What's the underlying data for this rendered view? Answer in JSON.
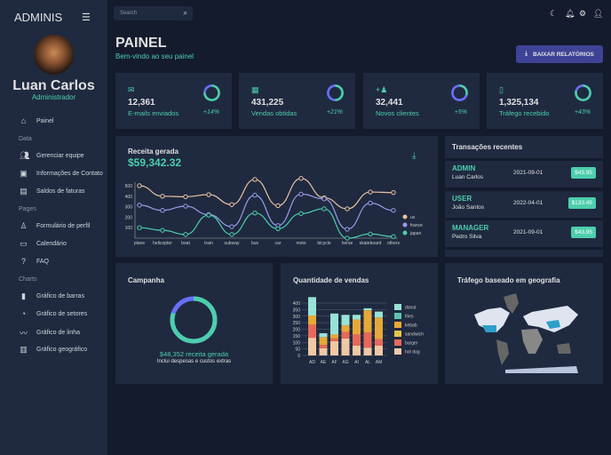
{
  "sidebar": {
    "brand": "ADMINIS",
    "user_name": "Luan Carlos",
    "user_role": "Administrador",
    "items": [
      {
        "label": "Painel",
        "icon": "home-icon"
      }
    ],
    "sections": [
      {
        "title": "Data",
        "items": [
          {
            "label": "Gerenciar equipe",
            "icon": "people-icon"
          },
          {
            "label": "Informações de Contato",
            "icon": "contacts-icon"
          },
          {
            "label": "Saldos de faturas",
            "icon": "receipt-icon"
          }
        ]
      },
      {
        "title": "Pages",
        "items": [
          {
            "label": "Formulário de perfil",
            "icon": "person-icon"
          },
          {
            "label": "Calendário",
            "icon": "calendar-icon"
          },
          {
            "label": "FAQ",
            "icon": "help-icon"
          }
        ]
      },
      {
        "title": "Charts",
        "items": [
          {
            "label": "Gráfico de barras",
            "icon": "bar-chart-icon"
          },
          {
            "label": "Gráfico de setores",
            "icon": "pie-chart-icon"
          },
          {
            "label": "Gráfico de linha",
            "icon": "line-chart-icon"
          },
          {
            "label": "Gráfico geográfico",
            "icon": "map-icon"
          }
        ]
      }
    ]
  },
  "topbar": {
    "search_placeholder": "Search"
  },
  "header": {
    "title": "PAINEL",
    "subtitle": "Bem-vindo ao seu painel",
    "download_button": "BAIXAR RELATÓRIOS"
  },
  "stats": [
    {
      "value": "12,361",
      "label": "E-mails enviados",
      "change": "+14%",
      "progress": 0.75,
      "icon": "email-icon"
    },
    {
      "value": "431,225",
      "label": "Vendas obtidas",
      "change": "+21%",
      "progress": 0.5,
      "icon": "point-of-sale-icon"
    },
    {
      "value": "32,441",
      "label": "Novos clientes",
      "change": "+5%",
      "progress": 0.3,
      "icon": "person-add-icon"
    },
    {
      "value": "1,325,134",
      "label": "Tráfego recebido",
      "change": "+43%",
      "progress": 0.8,
      "icon": "traffic-icon"
    }
  ],
  "revenue": {
    "title": "Receita gerada",
    "amount": "$59,342.32"
  },
  "transactions": {
    "title": "Transações recentes",
    "rows": [
      {
        "role": "ADMIN",
        "user": "Luan Carlos",
        "date": "2021-09-01",
        "amount": "$43.95"
      },
      {
        "role": "USER",
        "user": "João Santos",
        "date": "2022-04-01",
        "amount": "$133.45"
      },
      {
        "role": "MANAGER",
        "user": "Pedro Silva",
        "date": "2021-09-01",
        "amount": "$43.95"
      }
    ]
  },
  "campaign": {
    "title": "Campanha",
    "amount_text": "$48,352 receita gerada",
    "note": "Inclui despesas e custos extras",
    "progress": 0.8
  },
  "sales": {
    "title": "Quantidade de vendas"
  },
  "geo": {
    "title": "Tráfego baseado em geografia"
  },
  "colors": {
    "accent": "#4cceac",
    "primary": "#6870fa",
    "button": "#3e4396"
  },
  "chart_data": [
    {
      "type": "line",
      "categories": [
        "plane",
        "helicopter",
        "boat",
        "train",
        "subway",
        "bus",
        "car",
        "moto",
        "bicycle",
        "horse",
        "skateboard",
        "others"
      ],
      "yticks": [
        100,
        200,
        300,
        400,
        500
      ],
      "legend": "right",
      "series": [
        {
          "name": "us",
          "color": "#e8c1a0",
          "values": [
            500,
            400,
            395,
            415,
            320,
            560,
            310,
            570,
            385,
            280,
            440,
            435
          ]
        },
        {
          "name": "france",
          "color": "#9b9be8",
          "values": [
            315,
            265,
            305,
            225,
            110,
            410,
            120,
            420,
            375,
            85,
            335,
            265
          ]
        },
        {
          "name": "japan",
          "color": "#4cceac",
          "values": [
            100,
            75,
            35,
            220,
            35,
            240,
            90,
            235,
            280,
            0,
            40,
            15
          ]
        }
      ]
    },
    {
      "type": "bar",
      "stacked": true,
      "categories": [
        "AD",
        "AE",
        "AF",
        "AG",
        "AI",
        "AL",
        "AM"
      ],
      "yticks": [
        0,
        50,
        100,
        150,
        200,
        250,
        300,
        350,
        400
      ],
      "legend": "right",
      "series": [
        {
          "name": "hot dog",
          "color": "#f1c8a4",
          "values": [
            135,
            55,
            110,
            130,
            75,
            60,
            75
          ]
        },
        {
          "name": "burger",
          "color": "#e8695a",
          "values": [
            100,
            25,
            20,
            50,
            85,
            115,
            50
          ]
        },
        {
          "name": "sandwich",
          "color": "#e6c54d",
          "values": [
            0,
            0,
            0,
            0,
            0,
            0,
            0
          ]
        },
        {
          "name": "kebab",
          "color": "#e8a838",
          "values": [
            70,
            60,
            30,
            50,
            115,
            170,
            165
          ]
        },
        {
          "name": "fries",
          "color": "#5fc4b0",
          "values": [
            0,
            0,
            0,
            0,
            0,
            0,
            0
          ]
        },
        {
          "name": "donut",
          "color": "#97e3d5",
          "values": [
            140,
            30,
            160,
            80,
            35,
            15,
            45
          ]
        }
      ]
    }
  ]
}
